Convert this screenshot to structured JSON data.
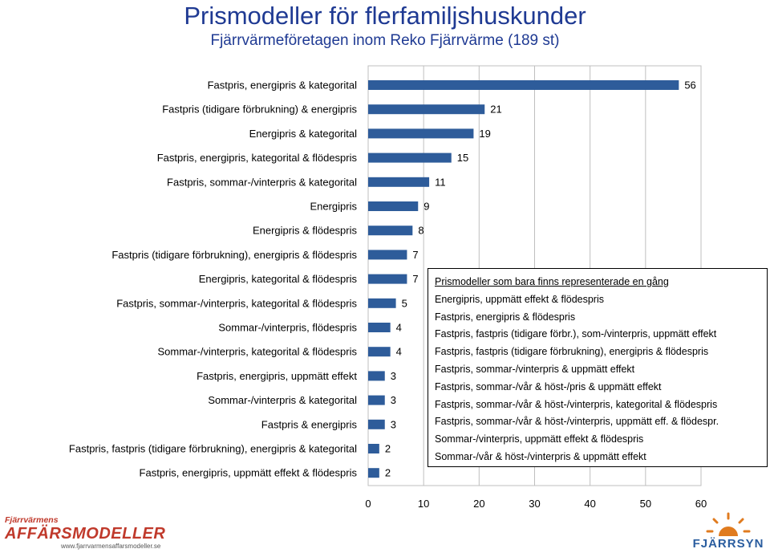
{
  "title": "Prismodeller för flerfamiljshuskunder",
  "subtitle": "Fjärrvärmeföretagen inom Reko Fjärrvärme (189 st)",
  "colors": {
    "bar": "#2e5c9a",
    "title": "#1f3a93",
    "grid": "#bfbfbf"
  },
  "chart_data": {
    "type": "bar",
    "orientation": "horizontal",
    "categories": [
      "Fastpris, energipris & kategorital",
      "Fastpris (tidigare förbrukning) & energipris",
      "Energipris & kategorital",
      "Fastpris, energipris, kategorital & flödespris",
      "Fastpris, sommar-/vinterpris & kategorital",
      "Energipris",
      "Energipris & flödespris",
      "Fastpris (tidigare förbrukning), energipris & flödespris",
      "Energipris, kategorital & flödespris",
      "Fastpris, sommar-/vinterpris, kategorital & flödespris",
      "Sommar-/vinterpris, flödespris",
      "Sommar-/vinterpris, kategorital & flödespris",
      "Fastpris, energipris, uppmätt effekt",
      "Sommar-/vinterpris & kategorital",
      "Fastpris & energipris",
      "Fastpris, fastpris (tidigare förbrukning), energipris & kategorital",
      "Fastpris, energipris, uppmätt effekt & flödespris"
    ],
    "values": [
      56,
      21,
      19,
      15,
      11,
      9,
      8,
      7,
      7,
      5,
      4,
      4,
      3,
      3,
      3,
      2,
      2
    ],
    "xlim": [
      0,
      60
    ],
    "xticks": [
      0,
      10,
      20,
      30,
      40,
      50,
      60
    ],
    "xgrid": true,
    "data_labels": true
  },
  "legend": {
    "title": "Prismodeller som bara finns representerade en gång",
    "items": [
      "Energipris, uppmätt effekt & flödespris",
      "Fastpris, energipris & flödespris",
      "Fastpris, fastpris (tidigare förbr.), som-/vinterpris, uppmätt effekt",
      "Fastpris, fastpris (tidigare förbrukning), energipris & flödespris",
      "Fastpris, sommar-/vinterpris & uppmätt effekt",
      "Fastpris, sommar-/vår & höst-/pris & uppmätt effekt",
      "Fastpris, sommar-/vår & höst-/vinterpris, kategorital & flödespris",
      "Fastpris, sommar-/vår & höst-/vinterpris, uppmätt eff. & flödespr.",
      "Sommar-/vinterpris, uppmätt effekt & flödespris",
      "Sommar-/vår & höst-/vinterpris & uppmätt effekt"
    ]
  },
  "logo_left": {
    "line1": "Fjärrvärmens",
    "line2": "AFFÄRSMODELLER",
    "url": "www.fjarrvarmensaffarsmodeller.se"
  },
  "logo_right": {
    "text": "FJÄRRSYN",
    "icon": "sun-icon"
  }
}
